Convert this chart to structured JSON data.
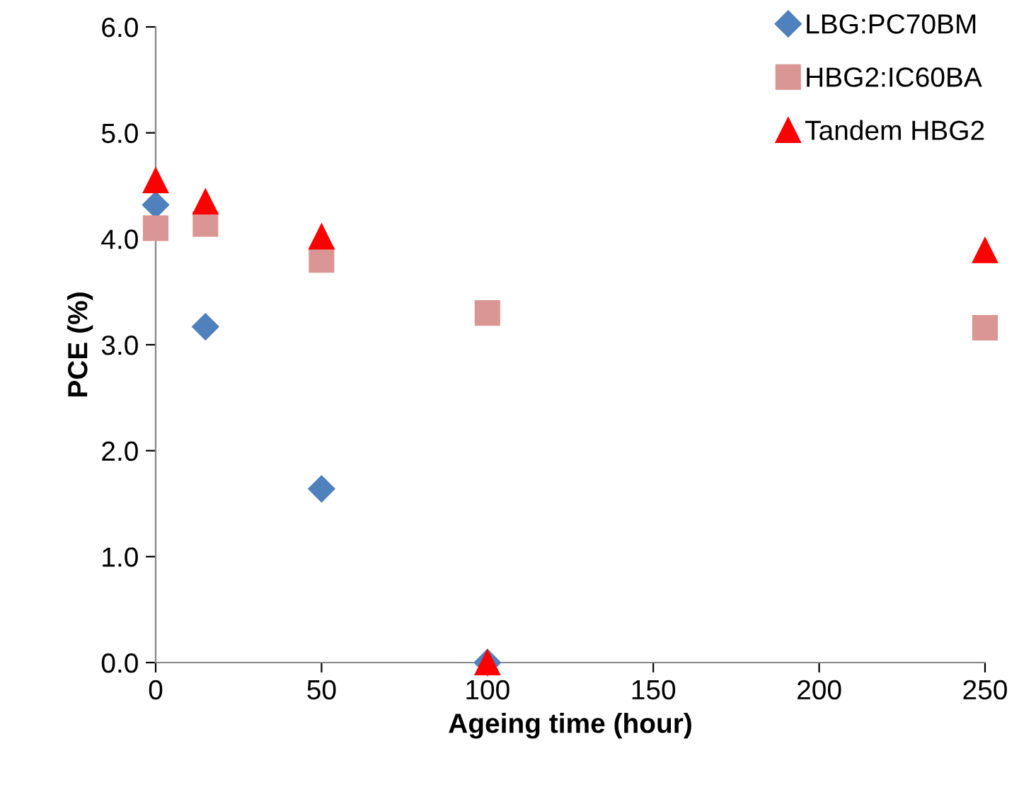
{
  "chart_data": {
    "type": "scatter",
    "xlabel": "Ageing time (hour)",
    "ylabel": "PCE (%)",
    "xlim": [
      0,
      250
    ],
    "xticks": [
      0,
      50,
      100,
      150,
      200,
      250
    ],
    "ylim": [
      0,
      6
    ],
    "yticks": [
      {
        "value": 0,
        "label": "0.0"
      },
      {
        "value": 1,
        "label": "1.0"
      },
      {
        "value": 2,
        "label": "2.0"
      },
      {
        "value": 3,
        "label": "3.0"
      },
      {
        "value": 4,
        "label": "4.0"
      },
      {
        "value": 5,
        "label": "5.0"
      },
      {
        "value": 6,
        "label": "6.0"
      }
    ],
    "grid": false,
    "legend": "top right",
    "series": [
      {
        "name": "LBG:PC70BM",
        "color": "#4f81bd",
        "marker": "diamond",
        "x": [
          0,
          15,
          50,
          100
        ],
        "values": [
          4.32,
          3.17,
          1.64,
          0
        ]
      },
      {
        "name": "HBG2:IC60BA",
        "color": "#d99694",
        "marker": "square",
        "x": [
          0,
          15,
          50,
          100,
          250
        ],
        "values": [
          4.1,
          4.14,
          3.8,
          3.3,
          3.16
        ]
      },
      {
        "name": "Tandem HBG2",
        "color": "#ff0000",
        "marker": "triangle",
        "x": [
          0,
          15,
          50,
          100,
          250
        ],
        "values": [
          4.55,
          4.35,
          4.02,
          0,
          3.89
        ]
      }
    ]
  }
}
